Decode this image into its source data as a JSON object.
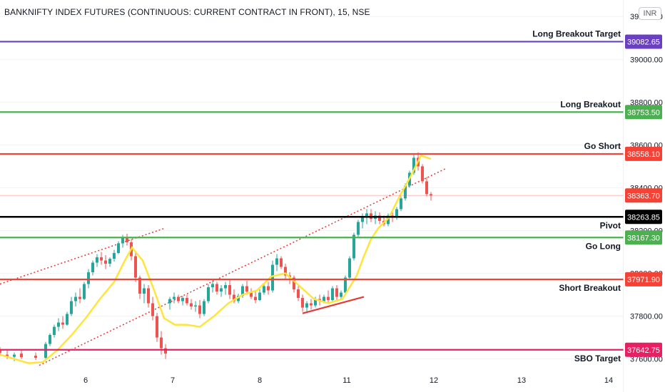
{
  "header": {
    "title": "BANKNIFTY INDEX FUTURES (CONTINUOUS: CURRENT CONTRACT IN FRONT), 15, NSE",
    "currency": "INR"
  },
  "chart_data": {
    "type": "candlestick",
    "title": "BANKNIFTY INDEX FUTURES (CONTINUOUS: CURRENT CONTRACT IN FRONT), 15, NSE",
    "x_tick_labels": [
      "6",
      "7",
      "8",
      "11",
      "12",
      "13",
      "14"
    ],
    "y_tick_labels": [
      39200,
      39000,
      38800,
      38600,
      38400,
      38200,
      38000,
      37800,
      37600
    ],
    "ylim": [
      37582,
      39224
    ],
    "current_price": 38363.7,
    "levels": [
      {
        "label": "Long Breakout Target",
        "value": "39082.65",
        "color": "#6a3fc1"
      },
      {
        "label": "Long Breakout",
        "value": "38753.50",
        "color": "#4caf50"
      },
      {
        "label": "Go Short",
        "value": "38558.10",
        "color": "#f44336"
      },
      {
        "label": "Pivot",
        "value": "38263.85",
        "color": "#000000"
      },
      {
        "label": "Go Long",
        "value": "38167.30",
        "color": "#4caf50"
      },
      {
        "label": "Short Breakout",
        "value": "37971.90",
        "color": "#f44336"
      },
      {
        "label": "SBO Target",
        "value": "37642.75",
        "color": "#e91e63"
      }
    ],
    "current_price_label": {
      "value": "38363.70",
      "color": "#f44336"
    },
    "colors": {
      "up": "#26a69a",
      "down": "#ef5350",
      "ma": "#ffe53b",
      "channel": "#e53935",
      "support": "#e53935"
    },
    "ma_line": [
      [
        0,
        37620
      ],
      [
        20,
        37600
      ],
      [
        40,
        37580
      ],
      [
        60,
        37585
      ],
      [
        80,
        37640
      ],
      [
        100,
        37710
      ],
      [
        120,
        37790
      ],
      [
        140,
        37880
      ],
      [
        160,
        37960
      ],
      [
        175,
        38060
      ],
      [
        185,
        38120
      ],
      [
        200,
        38060
      ],
      [
        215,
        37930
      ],
      [
        230,
        37790
      ],
      [
        245,
        37760
      ],
      [
        262,
        37760
      ],
      [
        280,
        37750
      ],
      [
        300,
        37800
      ],
      [
        320,
        37860
      ],
      [
        340,
        37900
      ],
      [
        360,
        37920
      ],
      [
        380,
        37985
      ],
      [
        400,
        38000
      ],
      [
        420,
        37940
      ],
      [
        440,
        37880
      ],
      [
        460,
        37860
      ],
      [
        480,
        37880
      ],
      [
        500,
        37990
      ],
      [
        510,
        38080
      ],
      [
        520,
        38160
      ],
      [
        530,
        38210
      ],
      [
        545,
        38260
      ],
      [
        560,
        38360
      ],
      [
        575,
        38450
      ],
      [
        590,
        38550
      ],
      [
        604,
        38535
      ]
    ],
    "channel_lines": [
      {
        "from": [
          0,
          37950
        ],
        "to": [
          232,
          38212
        ]
      },
      {
        "from": [
          55,
          37570
        ],
        "to": [
          625,
          38490
        ]
      }
    ],
    "support_line": {
      "from": [
        424,
        37813
      ],
      "to": [
        510,
        37890
      ]
    },
    "candles": [
      [
        0,
        37640,
        37655,
        37620,
        37628
      ],
      [
        10,
        37620,
        37640,
        37600,
        37612
      ],
      [
        20,
        37610,
        37630,
        37590,
        37620
      ],
      [
        30,
        37625,
        37640,
        37600,
        37608
      ],
      [
        50,
        37615,
        37630,
        37595,
        37605
      ],
      [
        64,
        37605,
        37680,
        37600,
        37670
      ],
      [
        70,
        37670,
        37720,
        37660,
        37712
      ],
      [
        76,
        37712,
        37760,
        37700,
        37750
      ],
      [
        82,
        37750,
        37790,
        37730,
        37770
      ],
      [
        88,
        37770,
        37800,
        37740,
        37760
      ],
      [
        94,
        37760,
        37820,
        37755,
        37810
      ],
      [
        100,
        37810,
        37890,
        37800,
        37870
      ],
      [
        106,
        37870,
        37910,
        37845,
        37890
      ],
      [
        112,
        37890,
        37930,
        37860,
        37880
      ],
      [
        118,
        37880,
        37960,
        37875,
        37950
      ],
      [
        124,
        37950,
        38020,
        37930,
        38005
      ],
      [
        130,
        38005,
        38060,
        37990,
        38050
      ],
      [
        136,
        38050,
        38090,
        38030,
        38075
      ],
      [
        142,
        38075,
        38100,
        38040,
        38060
      ],
      [
        148,
        38060,
        38085,
        38020,
        38045
      ],
      [
        154,
        38045,
        38075,
        38030,
        38068
      ],
      [
        160,
        38068,
        38110,
        38055,
        38095
      ],
      [
        166,
        38095,
        38150,
        38090,
        38140
      ],
      [
        172,
        38140,
        38180,
        38120,
        38165
      ],
      [
        178,
        38165,
        38185,
        38130,
        38145
      ],
      [
        184,
        38145,
        38160,
        38060,
        38080
      ],
      [
        190,
        38080,
        38100,
        37960,
        37980
      ],
      [
        196,
        37980,
        37990,
        37880,
        37905
      ],
      [
        202,
        37905,
        37950,
        37860,
        37930
      ],
      [
        208,
        37930,
        37945,
        37840,
        37860
      ],
      [
        214,
        37860,
        37890,
        37780,
        37800
      ],
      [
        220,
        37800,
        37815,
        37680,
        37700
      ],
      [
        226,
        37700,
        37730,
        37620,
        37650
      ],
      [
        232,
        37650,
        37670,
        37600,
        37625
      ],
      [
        238,
        37860,
        37890,
        37830,
        37880
      ],
      [
        244,
        37880,
        37910,
        37860,
        37890
      ],
      [
        250,
        37890,
        37900,
        37860,
        37870
      ],
      [
        256,
        37870,
        37895,
        37850,
        37885
      ],
      [
        262,
        37885,
        37900,
        37850,
        37860
      ],
      [
        268,
        37860,
        37880,
        37830,
        37845
      ],
      [
        274,
        37845,
        37870,
        37820,
        37850
      ],
      [
        280,
        37850,
        37875,
        37790,
        37810
      ],
      [
        286,
        37810,
        37880,
        37800,
        37870
      ],
      [
        292,
        37870,
        37950,
        37860,
        37935
      ],
      [
        298,
        37935,
        37970,
        37910,
        37950
      ],
      [
        304,
        37950,
        37960,
        37900,
        37915
      ],
      [
        310,
        37915,
        37945,
        37890,
        37930
      ],
      [
        316,
        37930,
        37960,
        37900,
        37945
      ],
      [
        322,
        37945,
        37970,
        37880,
        37900
      ],
      [
        328,
        37900,
        37925,
        37860,
        37870
      ],
      [
        334,
        37870,
        37905,
        37860,
        37895
      ],
      [
        340,
        37895,
        37950,
        37885,
        37940
      ],
      [
        346,
        37940,
        37965,
        37900,
        37915
      ],
      [
        352,
        37915,
        37930,
        37880,
        37890
      ],
      [
        358,
        37890,
        37915,
        37860,
        37875
      ],
      [
        364,
        37875,
        37925,
        37870,
        37910
      ],
      [
        370,
        37910,
        37950,
        37900,
        37940
      ],
      [
        376,
        37940,
        37960,
        37900,
        37920
      ],
      [
        382,
        37920,
        38060,
        37910,
        38040
      ],
      [
        388,
        38040,
        38090,
        38010,
        38070
      ],
      [
        394,
        38070,
        38080,
        38020,
        38030
      ],
      [
        400,
        38030,
        38045,
        37975,
        37990
      ],
      [
        406,
        37990,
        38005,
        37950,
        37980
      ],
      [
        412,
        37980,
        37990,
        37910,
        37925
      ],
      [
        418,
        37925,
        37940,
        37870,
        37885
      ],
      [
        424,
        37885,
        37900,
        37820,
        37840
      ],
      [
        430,
        37840,
        37870,
        37820,
        37860
      ],
      [
        436,
        37860,
        37880,
        37830,
        37850
      ],
      [
        442,
        37850,
        37890,
        37840,
        37880
      ],
      [
        448,
        37880,
        37900,
        37850,
        37870
      ],
      [
        454,
        37870,
        37900,
        37860,
        37890
      ],
      [
        460,
        37890,
        37920,
        37860,
        37875
      ],
      [
        466,
        37875,
        37940,
        37870,
        37930
      ],
      [
        472,
        37930,
        37945,
        37870,
        37890
      ],
      [
        478,
        37890,
        37920,
        37880,
        37910
      ],
      [
        484,
        37910,
        37990,
        37900,
        37980
      ],
      [
        490,
        37980,
        38080,
        37970,
        38070
      ],
      [
        496,
        38070,
        38190,
        38060,
        38180
      ],
      [
        502,
        38180,
        38250,
        38170,
        38240
      ],
      [
        508,
        38240,
        38280,
        38210,
        38260
      ],
      [
        514,
        38260,
        38300,
        38230,
        38280
      ],
      [
        520,
        38280,
        38300,
        38240,
        38255
      ],
      [
        526,
        38255,
        38290,
        38230,
        38270
      ],
      [
        532,
        38270,
        38285,
        38230,
        38245
      ],
      [
        538,
        38245,
        38270,
        38220,
        38230
      ],
      [
        544,
        38230,
        38280,
        38220,
        38270
      ],
      [
        550,
        38270,
        38300,
        38240,
        38260
      ],
      [
        556,
        38260,
        38310,
        38250,
        38300
      ],
      [
        562,
        38300,
        38360,
        38290,
        38350
      ],
      [
        568,
        38350,
        38420,
        38340,
        38410
      ],
      [
        574,
        38410,
        38480,
        38400,
        38470
      ],
      [
        580,
        38470,
        38560,
        38460,
        38540
      ],
      [
        586,
        38540,
        38565,
        38480,
        38500
      ],
      [
        592,
        38500,
        38510,
        38420,
        38430
      ],
      [
        598,
        38430,
        38450,
        38360,
        38370
      ],
      [
        604,
        38370,
        38380,
        38340,
        38364
      ]
    ]
  }
}
